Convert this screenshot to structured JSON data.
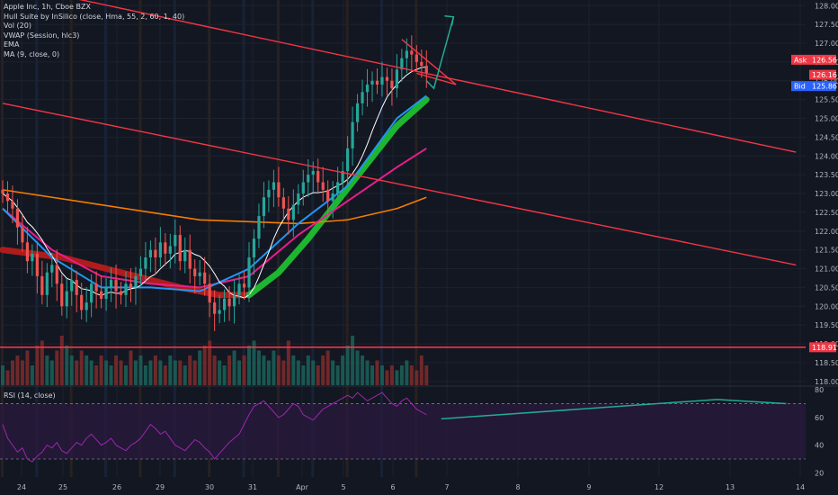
{
  "legend": {
    "symbol": "Apple Inc, 1h, Cboe BZX",
    "hull": "Hull Suite by InSilico (close, Hma, 55, 2, 60, 1, 40)",
    "vol": "Vol (20)",
    "vwap": "VWAP (Session, hlc3)",
    "ema": "EMA",
    "ma": "MA (9, close, 0)",
    "rsi": "RSI (14, close)"
  },
  "price_tags": {
    "ask_label": "Ask",
    "ask": "126.56",
    "last": "126.16",
    "bid_label": "Bid",
    "bid": "125.86",
    "support": "118.91"
  },
  "colors": {
    "background": "#131722",
    "trendline": "#f23645",
    "arrow": "#22ab94",
    "hull_up": "#1fbf32",
    "hull_down": "#b71c1c",
    "ma": "#ffffff",
    "ema_blue": "#2196f3",
    "vwap_magenta": "#e91e8c",
    "long_ma": "#f57c00",
    "rsi": "#9c27b0",
    "up_candle": "#26a69a",
    "down_candle": "#ef5350"
  },
  "chart_data": {
    "type": "candlestick",
    "y_axis_ticks": [
      "128.00",
      "127.50",
      "127.00",
      "126.50",
      "126.00",
      "125.50",
      "125.00",
      "124.50",
      "124.00",
      "123.50",
      "123.00",
      "122.50",
      "122.00",
      "121.50",
      "121.00",
      "120.50",
      "120.00",
      "119.50",
      "119.00",
      "118.50",
      "118.00"
    ],
    "ylim": [
      117.9,
      128.15
    ],
    "x_axis_ticks": [
      "24",
      "25",
      "26",
      "29",
      "30",
      "31",
      "Apr",
      "5",
      "6",
      "7",
      "8",
      "9",
      "12",
      "13",
      "14"
    ],
    "rsi_ticks": [
      "80",
      "60",
      "40",
      "20"
    ],
    "rsi_ylim": [
      17,
      82
    ],
    "rsi_levels": [
      70,
      30
    ],
    "close": [
      123.0,
      122.8,
      122.6,
      122.1,
      121.7,
      121.2,
      121.4,
      120.8,
      120.3,
      120.9,
      121.1,
      120.6,
      120.0,
      120.4,
      120.7,
      120.3,
      119.9,
      120.1,
      120.6,
      120.4,
      120.2,
      120.5,
      120.7,
      120.4,
      120.3,
      120.6,
      120.5,
      120.8,
      121.0,
      121.3,
      121.5,
      121.3,
      121.7,
      121.4,
      121.6,
      121.9,
      121.2,
      121.5,
      121.0,
      120.8,
      120.9,
      120.6,
      120.1,
      119.8,
      119.9,
      120.2,
      120.0,
      120.3,
      120.6,
      120.5,
      121.3,
      121.8,
      122.4,
      122.9,
      123.1,
      123.3,
      122.9,
      122.6,
      122.3,
      122.7,
      123.0,
      123.3,
      123.5,
      123.6,
      123.3,
      123.1,
      122.8,
      123.0,
      123.3,
      123.6,
      124.2,
      124.9,
      125.4,
      125.7,
      125.9,
      126.0,
      125.9,
      126.1,
      126.0,
      125.8,
      126.3,
      126.6,
      126.8,
      126.7,
      126.5,
      126.4,
      126.2
    ],
    "hull_bands": [
      {
        "trend": "down",
        "x": [
          0,
          12,
          24,
          36,
          44,
          50
        ],
        "y": [
          121.5,
          121.3,
          120.9,
          120.5,
          120.3,
          120.3
        ]
      },
      {
        "trend": "up",
        "x": [
          50,
          56,
          62,
          68,
          74,
          80,
          86
        ],
        "y": [
          120.3,
          120.9,
          121.8,
          122.8,
          123.8,
          124.8,
          125.5
        ]
      }
    ],
    "ema": {
      "x": [
        0,
        10,
        20,
        30,
        40,
        50,
        60,
        70,
        80,
        86
      ],
      "y": [
        122.6,
        121.3,
        120.5,
        120.5,
        120.4,
        121.0,
        122.2,
        123.2,
        125.0,
        125.6
      ]
    },
    "vwap": {
      "x": [
        0,
        10,
        20,
        30,
        40,
        50,
        60,
        70,
        80,
        86
      ],
      "y": [
        122.6,
        121.5,
        120.8,
        120.6,
        120.5,
        120.8,
        121.9,
        122.8,
        123.7,
        124.2
      ]
    },
    "long_ma": {
      "x": [
        0,
        20,
        40,
        60,
        70,
        80,
        86
      ],
      "y": [
        123.1,
        122.7,
        122.3,
        122.2,
        122.3,
        122.6,
        122.9
      ]
    },
    "volume": [
      0.4,
      0.3,
      0.5,
      0.6,
      0.5,
      0.7,
      0.4,
      0.8,
      0.9,
      0.6,
      0.5,
      0.7,
      1.0,
      0.8,
      0.6,
      0.5,
      0.7,
      0.6,
      0.5,
      0.4,
      0.6,
      0.5,
      0.4,
      0.6,
      0.5,
      0.4,
      0.7,
      0.5,
      0.6,
      0.4,
      0.5,
      0.6,
      0.5,
      0.4,
      0.6,
      0.5,
      0.5,
      0.4,
      0.6,
      0.5,
      0.7,
      0.8,
      0.9,
      0.6,
      0.5,
      0.4,
      0.6,
      0.7,
      0.5,
      0.6,
      0.8,
      0.9,
      0.7,
      0.6,
      0.5,
      0.7,
      0.6,
      0.5,
      0.9,
      0.6,
      0.5,
      0.4,
      0.6,
      0.5,
      0.4,
      0.6,
      0.7,
      0.5,
      0.4,
      0.6,
      0.8,
      1.0,
      0.7,
      0.6,
      0.5,
      0.4,
      0.5,
      0.4,
      0.3,
      0.4,
      0.3,
      0.4,
      0.5,
      0.4,
      0.3,
      0.6,
      0.4
    ],
    "rsi": [
      55,
      45,
      40,
      35,
      38,
      30,
      28,
      32,
      35,
      40,
      38,
      42,
      36,
      34,
      38,
      42,
      40,
      45,
      48,
      44,
      40,
      42,
      45,
      40,
      38,
      36,
      40,
      42,
      45,
      50,
      55,
      52,
      48,
      50,
      45,
      40,
      38,
      36,
      40,
      44,
      42,
      38,
      35,
      30,
      34,
      38,
      42,
      45,
      48,
      55,
      62,
      68,
      70,
      72,
      68,
      64,
      60,
      62,
      66,
      70,
      68,
      62,
      60,
      58,
      62,
      66,
      68,
      70,
      72,
      74,
      76,
      74,
      78,
      75,
      72,
      74,
      76,
      78,
      74,
      70,
      68,
      72,
      74,
      70,
      66,
      64,
      62
    ],
    "projection": {
      "arrow": {
        "x": [
          86,
          87.5,
          91.5
        ],
        "y": [
          126.0,
          125.8,
          127.7
        ]
      },
      "rsi_line": {
        "x": [
          89,
          145,
          159
        ],
        "y": [
          59,
          73,
          70
        ]
      }
    },
    "trendlines": [
      {
        "x": [
          0,
          161
        ],
        "y": [
          128.6,
          124.1
        ]
      },
      {
        "x": [
          0,
          161
        ],
        "y": [
          125.4,
          121.1
        ]
      },
      {
        "x": [
          81,
          92
        ],
        "y": [
          127.1,
          125.9
        ]
      },
      {
        "x": [
          84,
          92
        ],
        "y": [
          126.2,
          125.9
        ]
      }
    ],
    "support_level": 118.91
  }
}
